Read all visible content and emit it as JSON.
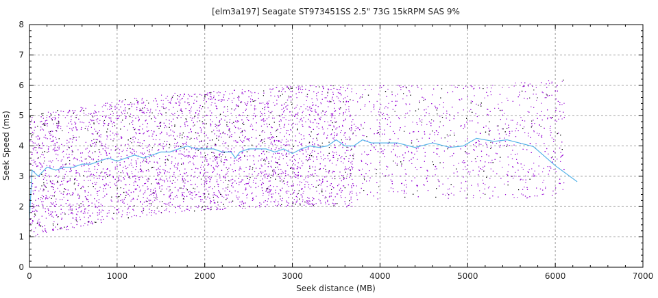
{
  "chart_data": {
    "type": "scatter",
    "title": "[elm3a197] Seagate ST973451SS 2.5\" 73G 15kRPM SAS 9%",
    "xlabel": "Seek distance (MB)",
    "ylabel": "Seek Speed (ms)",
    "xlim": [
      0,
      7000
    ],
    "ylim": [
      0,
      8
    ],
    "x_ticks": [
      "0",
      "1000",
      "2000",
      "3000",
      "4000",
      "5000",
      "6000",
      "7000"
    ],
    "y_ticks": [
      "0",
      "1",
      "2",
      "3",
      "4",
      "5",
      "6",
      "7",
      "8"
    ],
    "grid": true,
    "colors": {
      "points": "#9400d3",
      "points_alt": "#000000",
      "mean_line": "#56b4e9",
      "grid": "#a0a0a0"
    },
    "point_cloud": {
      "description_free": true,
      "x_max": 6100,
      "dense_until_x": 3700,
      "upper_bound": [
        [
          0,
          5.0
        ],
        [
          500,
          5.3
        ],
        [
          1000,
          5.5
        ],
        [
          1500,
          5.75
        ],
        [
          2000,
          5.8
        ],
        [
          3000,
          6.0
        ],
        [
          4000,
          6.05
        ],
        [
          5000,
          6.05
        ],
        [
          6100,
          6.2
        ]
      ],
      "lower_bound": [
        [
          0,
          1.0
        ],
        [
          500,
          1.3
        ],
        [
          1000,
          1.6
        ],
        [
          1500,
          1.75
        ],
        [
          2000,
          1.9
        ],
        [
          3000,
          2.0
        ],
        [
          3700,
          2.0
        ],
        [
          3750,
          2.25
        ],
        [
          6100,
          2.3
        ]
      ]
    },
    "series": [
      {
        "name": "mean",
        "x": [
          0,
          30,
          100,
          200,
          300,
          400,
          500,
          600,
          700,
          800,
          900,
          1000,
          1100,
          1200,
          1300,
          1400,
          1500,
          1600,
          1700,
          1800,
          1900,
          2000,
          2100,
          2200,
          2300,
          2350,
          2400,
          2500,
          2600,
          2700,
          2800,
          2900,
          3000,
          3100,
          3200,
          3300,
          3400,
          3500,
          3600,
          3700,
          3800,
          3900,
          4000,
          4200,
          4400,
          4600,
          4800,
          4950,
          5100,
          5300,
          5450,
          5750,
          6000,
          6250
        ],
        "y": [
          1.6,
          3.2,
          3.0,
          3.3,
          3.2,
          3.3,
          3.3,
          3.4,
          3.4,
          3.5,
          3.6,
          3.5,
          3.6,
          3.7,
          3.6,
          3.7,
          3.8,
          3.8,
          3.9,
          4.0,
          3.9,
          3.9,
          3.9,
          3.8,
          3.8,
          3.6,
          3.8,
          3.9,
          3.9,
          3.9,
          3.8,
          3.9,
          3.75,
          3.9,
          4.0,
          3.95,
          4.0,
          4.2,
          4.0,
          4.0,
          4.2,
          4.1,
          4.1,
          4.1,
          3.95,
          4.1,
          3.95,
          4.0,
          4.25,
          4.15,
          4.2,
          3.98,
          3.35,
          2.82
        ]
      }
    ]
  }
}
